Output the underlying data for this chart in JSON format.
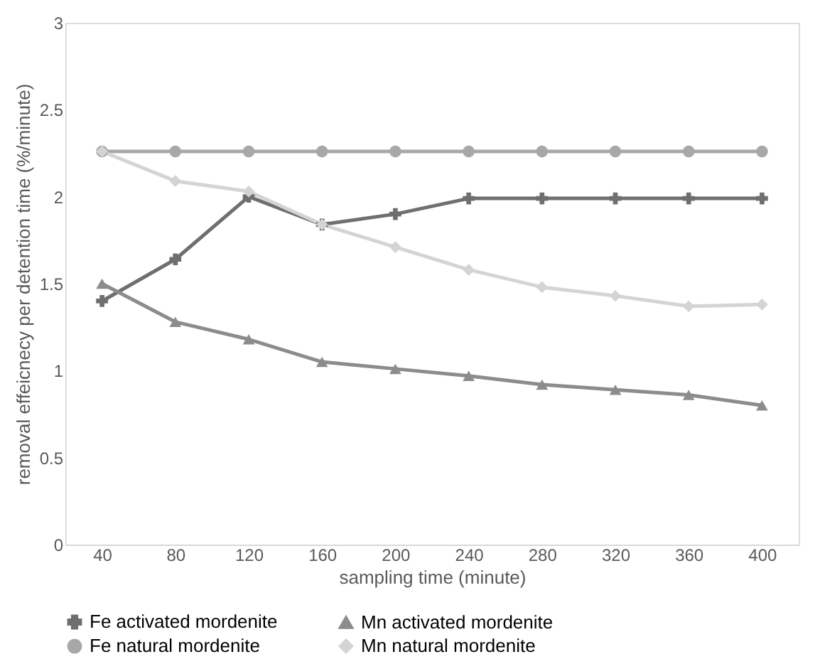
{
  "chart_data": {
    "type": "line",
    "xlabel": "sampling time (minute)",
    "ylabel": "removal effeicnecy per detention time (%/minute)",
    "categories": [
      "40",
      "80",
      "120",
      "160",
      "200",
      "240",
      "280",
      "320",
      "360",
      "400"
    ],
    "ylim": [
      0,
      3
    ],
    "yticks": [
      0,
      0.5,
      1,
      1.5,
      2,
      2.5,
      3
    ],
    "grid": false,
    "legend": "bottom",
    "series": [
      {
        "name": "Fe activated mordenite",
        "color": "#6f6f6f",
        "marker": "cross",
        "values": [
          1.4,
          1.64,
          2.0,
          1.84,
          1.9,
          1.99,
          1.99,
          1.99,
          1.99,
          1.99
        ]
      },
      {
        "name": "Mn activated mordenite",
        "color": "#8c8c8c",
        "marker": "triangle",
        "values": [
          1.5,
          1.28,
          1.18,
          1.05,
          1.01,
          0.97,
          0.92,
          0.89,
          0.86,
          0.8
        ]
      },
      {
        "name": "Fe natural mordenite",
        "color": "#a8a8a8",
        "marker": "circle",
        "values": [
          2.26,
          2.26,
          2.26,
          2.26,
          2.26,
          2.26,
          2.26,
          2.26,
          2.26,
          2.26
        ]
      },
      {
        "name": "Mn natural mordenite",
        "color": "#d4d4d4",
        "marker": "diamond",
        "values": [
          2.26,
          2.09,
          2.03,
          1.84,
          1.71,
          1.58,
          1.48,
          1.43,
          1.37,
          1.38
        ]
      }
    ]
  }
}
